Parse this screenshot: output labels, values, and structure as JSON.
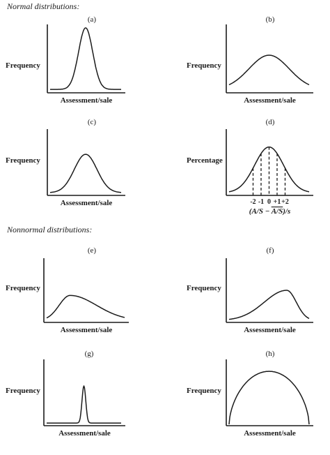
{
  "headings": {
    "normal": "Normal distributions:",
    "nonnormal": "Nonnormal distributions:"
  },
  "colors": {
    "ink": "#1a1a1a",
    "paper": "#ffffff"
  },
  "chart_data": [
    {
      "id": "a",
      "panel_label": "(a)",
      "type": "line",
      "group": "normal",
      "ylabel": "Frequency",
      "xlabel": "Assessment/sale",
      "shape": "symmetric, tall and narrow",
      "peak_position": 0.5,
      "spread": 0.1,
      "peak_height": 0.95,
      "baseline": 0.05
    },
    {
      "id": "b",
      "panel_label": "(b)",
      "type": "line",
      "group": "normal",
      "ylabel": "Frequency",
      "xlabel": "Assessment/sale",
      "shape": "symmetric, wide and low",
      "peak_position": 0.5,
      "spread": 0.25,
      "peak_height": 0.55,
      "baseline": 0.05
    },
    {
      "id": "c",
      "panel_label": "(c)",
      "type": "line",
      "group": "normal",
      "ylabel": "Frequency",
      "xlabel": "Assessment/sale",
      "shape": "symmetric, moderate",
      "peak_position": 0.5,
      "spread": 0.16,
      "peak_height": 0.62,
      "baseline": 0.04
    },
    {
      "id": "d",
      "panel_label": "(d)",
      "type": "line",
      "group": "normal",
      "ylabel": "Percentage",
      "xlabel": "(A/S − A/S)/s",
      "shape": "standard normal with dashed lines at −2, −1, 0, +1, +2",
      "peak_position": 0.5,
      "spread": 0.18,
      "peak_height": 0.73,
      "baseline": 0.04,
      "x_ticks": [
        "-2",
        "-1",
        "0",
        "+1",
        "+2"
      ],
      "x_tick_values": [
        -2,
        -1,
        0,
        1,
        2
      ],
      "xlabel_parts": {
        "open": "(",
        "left": "A/S",
        "minus": " − ",
        "right_overlined": "A/S",
        "close": ")/s"
      }
    },
    {
      "id": "e",
      "panel_label": "(e)",
      "type": "line",
      "group": "nonnormal",
      "ylabel": "Frequency",
      "xlabel": "Assessment/sale",
      "shape": "right-skewed (peak left, long right tail)",
      "peak_position": 0.3,
      "spread_left": 0.14,
      "spread_right": 0.34,
      "peak_height": 0.42,
      "baseline": 0.03
    },
    {
      "id": "f",
      "panel_label": "(f)",
      "type": "line",
      "group": "nonnormal",
      "ylabel": "Frequency",
      "xlabel": "Assessment/sale",
      "shape": "left-skewed (peak right, long left tail)",
      "peak_position": 0.72,
      "spread_left": 0.28,
      "spread_right": 0.12,
      "peak_height": 0.5,
      "baseline": 0.03
    },
    {
      "id": "g",
      "panel_label": "(g)",
      "type": "line",
      "group": "nonnormal",
      "ylabel": "Frequency",
      "xlabel": "Assessment/sale",
      "shape": "very peaked with heavy flat tails",
      "peak_position": 0.5,
      "spread": 0.025,
      "peak_height": 0.6,
      "baseline": 0.04
    },
    {
      "id": "h",
      "panel_label": "(h)",
      "type": "line",
      "group": "nonnormal",
      "ylabel": "Frequency",
      "xlabel": "Assessment/sale",
      "shape": "flat-topped, broad dome",
      "peak_position": 0.5,
      "spread": 0.55,
      "peak_height": 0.82,
      "baseline": 0.02
    }
  ]
}
